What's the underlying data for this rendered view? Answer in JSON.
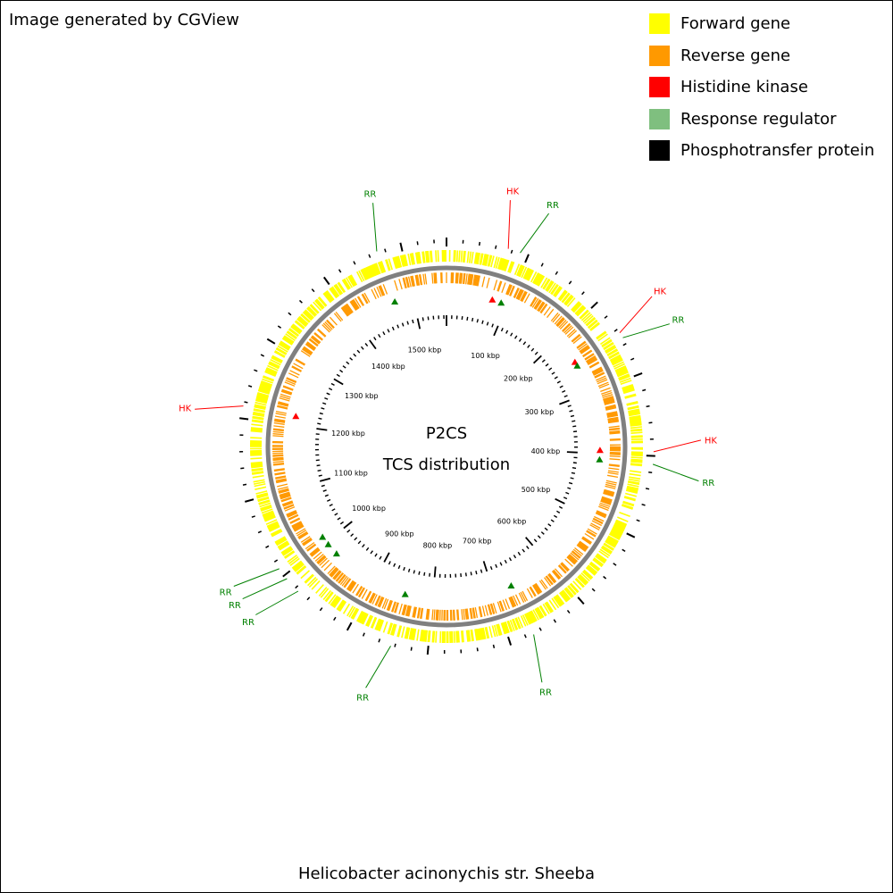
{
  "credit": "Image generated by CGView",
  "caption": "Helicobacter acinonychis str. Sheeba",
  "center": {
    "line1": "P2CS",
    "line2": "TCS distribution"
  },
  "legend": [
    {
      "label": "Forward gene",
      "color": "#ffff00"
    },
    {
      "label": "Reverse gene",
      "color": "#ff9900"
    },
    {
      "label": "Histidine kinase",
      "color": "#ff0000"
    },
    {
      "label": "Response regulator",
      "color": "#7fbf7f"
    },
    {
      "label": "Phosphotransfer protein",
      "color": "#000000"
    }
  ],
  "colors": {
    "forward": "#ffff00",
    "reverse": "#ff9900",
    "backbone": "#808080",
    "hk": "#ff0000",
    "rr": "#008000",
    "tick": "#000000"
  },
  "chart_data": {
    "type": "circular-genome-map",
    "genome_length_kbp": 1555,
    "ruler_labels": [
      {
        "kbp": 100,
        "text": "100 kbp"
      },
      {
        "kbp": 200,
        "text": "200 kbp"
      },
      {
        "kbp": 300,
        "text": "300 kbp"
      },
      {
        "kbp": 400,
        "text": "400 kbp"
      },
      {
        "kbp": 500,
        "text": "500 kbp"
      },
      {
        "kbp": 600,
        "text": "600 kbp"
      },
      {
        "kbp": 700,
        "text": "700 kbp"
      },
      {
        "kbp": 800,
        "text": "800 kbp"
      },
      {
        "kbp": 900,
        "text": "900 kbp"
      },
      {
        "kbp": 1000,
        "text": "1000 kbp"
      },
      {
        "kbp": 1100,
        "text": "1100 kbp"
      },
      {
        "kbp": 1200,
        "text": "1200 kbp"
      },
      {
        "kbp": 1300,
        "text": "1300 kbp"
      },
      {
        "kbp": 1400,
        "text": "1400 kbp"
      },
      {
        "kbp": 1500,
        "text": "1500 kbp"
      }
    ],
    "tcs_features": [
      {
        "kbp": 75,
        "type": "HK",
        "label": "HK"
      },
      {
        "kbp": 90,
        "type": "RR",
        "label": "RR"
      },
      {
        "kbp": 245,
        "type": "HK",
        "label": "HK"
      },
      {
        "kbp": 252,
        "type": "RR",
        "label": "RR"
      },
      {
        "kbp": 395,
        "type": "HK",
        "label": "HK"
      },
      {
        "kbp": 410,
        "type": "RR",
        "label": "RR"
      },
      {
        "kbp": 670,
        "type": "RR",
        "label": "RR"
      },
      {
        "kbp": 845,
        "type": "RR",
        "label": "RR"
      },
      {
        "kbp": 975,
        "type": "RR",
        "label": "RR"
      },
      {
        "kbp": 995,
        "type": "RR",
        "label": "RR"
      },
      {
        "kbp": 1010,
        "type": "RR",
        "label": "RR"
      },
      {
        "kbp": 1215,
        "type": "HK",
        "label": "HK"
      },
      {
        "kbp": 1470,
        "type": "RR",
        "label": "RR"
      }
    ]
  }
}
